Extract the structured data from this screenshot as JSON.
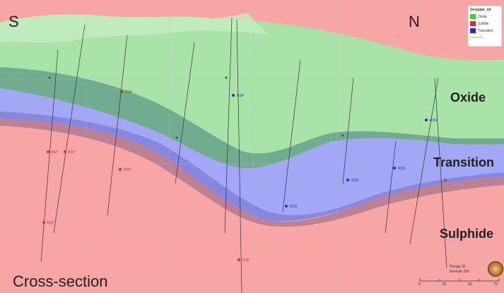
{
  "section": {
    "left_direction": "S",
    "right_direction": "N",
    "title": "Cross-section"
  },
  "zones": {
    "oxide": {
      "label": "Oxide",
      "color": "#a9e2a6"
    },
    "transition": {
      "label": "Transition",
      "color": "#a3a6f4"
    },
    "sulphide": {
      "label": "Sulphide",
      "color": "#f5a3a3"
    }
  },
  "legend": {
    "title": "Grouppe_sd",
    "items": [
      {
        "label": "Oxide",
        "color": "#2fd33a"
      },
      {
        "label": "Sulfide",
        "color": "#f22222"
      },
      {
        "label": "Transition",
        "color": "#2626e0"
      }
    ],
    "footer": "Grid scale"
  },
  "scale": {
    "plunge": "Plunge 30",
    "azimuth": "Azimuth 200",
    "ticks": [
      "0",
      "25",
      "50",
      "75"
    ]
  },
  "drillholes": [
    {
      "label": "RSP",
      "color": "#e03030"
    },
    {
      "label": "RSP",
      "color": "#e03030"
    },
    {
      "label": "RSP",
      "color": "#e03030"
    },
    {
      "label": "RSP",
      "color": "#e03030"
    },
    {
      "label": "RSP",
      "color": "#e03030"
    },
    {
      "label": "RSP",
      "color": "#7a5a00"
    },
    {
      "label": "RSP",
      "color": "#2a2ad0"
    },
    {
      "label": "RSS",
      "color": "#2a2ad0"
    },
    {
      "label": "RSS",
      "color": "#2a2ad0"
    },
    {
      "label": "RSS",
      "color": "#2a2ad0"
    },
    {
      "label": "RSS",
      "color": "#2a2ad0"
    }
  ]
}
